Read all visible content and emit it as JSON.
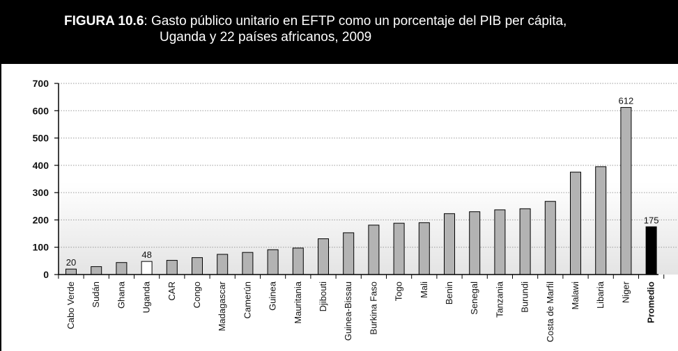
{
  "header": {
    "figure_label": "FIGURA 10.6",
    "title_line1": ": Gasto público unitario en EFTP como un porcentaje del PIB per cápita,",
    "title_line2": "Uganda y 22 países africanos, 2009"
  },
  "colors": {
    "bar": "#b3b3b3",
    "highlight_bar": "#ffffff",
    "average_bar": "#000000",
    "header_bg": "#000000"
  },
  "chart_data": {
    "type": "bar",
    "title": "Gasto público unitario en EFTP como un porcentaje del PIB per cápita, Uganda y 22 países africanos, 2009",
    "xlabel": "",
    "ylabel": "",
    "ylim": [
      0,
      700
    ],
    "yticks": [
      0,
      100,
      200,
      300,
      400,
      500,
      600,
      700
    ],
    "grid": true,
    "categories": [
      "Cabo Verde",
      "Sudán",
      "Ghana",
      "Uganda",
      "CAR",
      "Congo",
      "Madagascar",
      "Camerún",
      "Guinea",
      "Mauritania",
      "Djibouti",
      "Guinea-Bissau",
      "Burkina Faso",
      "Togo",
      "Mali",
      "Benin",
      "Senegal",
      "Tanzania",
      "Burundi",
      "Costa de Marfil",
      "Malawi",
      "Libaria",
      "Niger",
      "Promedio"
    ],
    "values": [
      20,
      29,
      44,
      48,
      52,
      62,
      74,
      81,
      91,
      97,
      131,
      153,
      181,
      188,
      190,
      223,
      230,
      237,
      241,
      268,
      375,
      395,
      612,
      175
    ],
    "data_labels": [
      {
        "index": 0,
        "text": "20"
      },
      {
        "index": 3,
        "text": "48"
      },
      {
        "index": 22,
        "text": "612"
      },
      {
        "index": 23,
        "text": "175"
      }
    ],
    "highlight_index": 3,
    "average_index": 23
  }
}
